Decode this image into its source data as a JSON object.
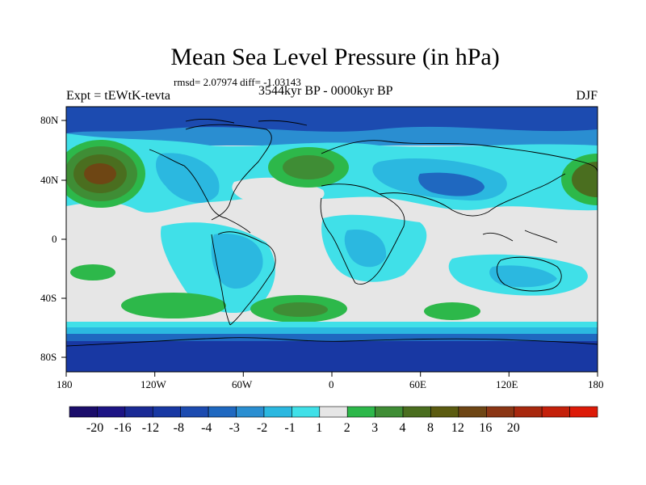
{
  "title": "Mean Sea Level Pressure (in hPa)",
  "stats_text": "rmsd= 2.07974  diff= -1.03143",
  "left_label": "Expt = tEWtK-tevta",
  "center_label": "3544kyr BP - 0000kyr BP",
  "right_label": "DJF",
  "lat_labels": [
    "80N",
    "40N",
    "0",
    "40S",
    "80S"
  ],
  "lon_labels": [
    "180",
    "120W",
    "60W",
    "0",
    "60E",
    "120E",
    "180"
  ],
  "colorbar": {
    "labels": [
      "-20",
      "-16",
      "-12",
      "-8",
      "-4",
      "-3",
      "-2",
      "-1",
      "1",
      "2",
      "3",
      "4",
      "8",
      "12",
      "16",
      "20"
    ],
    "colors": [
      "#1b0d6b",
      "#1d1485",
      "#1a2a95",
      "#1838a3",
      "#1c4bb0",
      "#1f68c0",
      "#2a8ed1",
      "#2bb8e0",
      "#40e0e8",
      "#e6e6e6",
      "#2db84a",
      "#3f8d35",
      "#4a6e1f",
      "#5b5b10",
      "#6e4614",
      "#8b3614",
      "#a8280e",
      "#c4200a",
      "#dd1a08"
    ]
  },
  "chart_data": {
    "type": "heatmap",
    "title": "Mean Sea Level Pressure (in hPa)",
    "variable": "Mean Sea Level Pressure difference",
    "units": "hPa",
    "season": "DJF",
    "experiment": "tEWtK-tevta",
    "comparison": "3544kyr BP - 0000kyr BP",
    "rmsd": 2.07974,
    "diff": -1.03143,
    "xlim": [
      -180,
      180
    ],
    "ylim": [
      -90,
      90
    ],
    "contour_levels": [
      -20,
      -16,
      -12,
      -8,
      -4,
      -3,
      -2,
      -1,
      1,
      2,
      3,
      4,
      8,
      12,
      16,
      20
    ],
    "colors": {
      "strong_negative": "#1838a3",
      "moderate_negative": "#1f68c0",
      "weak_negative": "#40e0e8",
      "near_zero": "#e6e6e6",
      "weak_positive": "#2db84a",
      "moderate_positive": "#3f8d35",
      "strong_positive": "#6e4614"
    }
  }
}
